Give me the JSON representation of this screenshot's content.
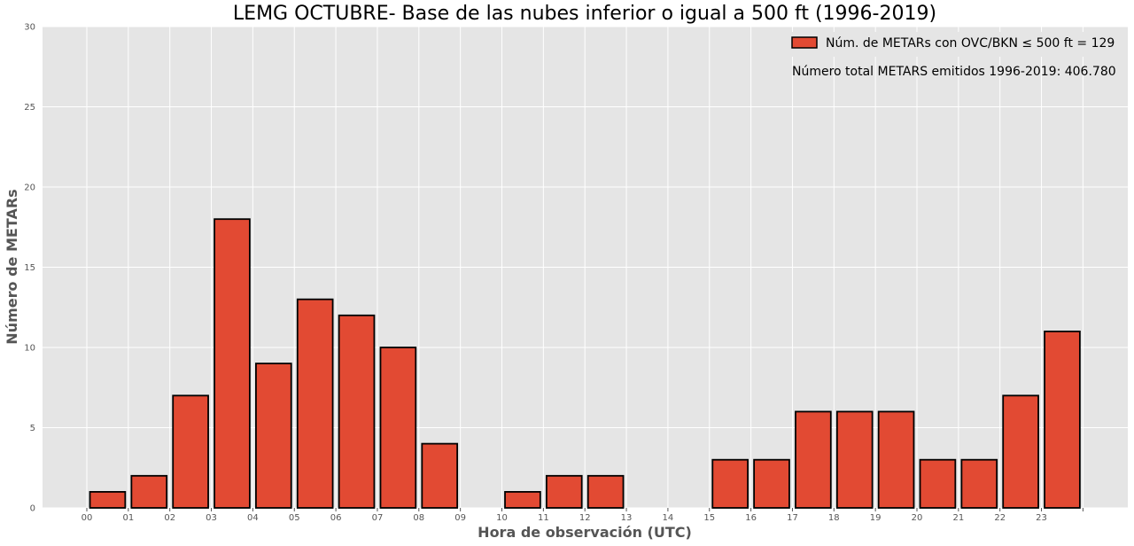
{
  "chart_data": {
    "type": "bar",
    "title": "LEMG OCTUBRE- Base de las nubes inferior o igual a 500 ft (1996-2019)",
    "xlabel": "Hora de observación (UTC)",
    "ylabel": "Número de METARs",
    "categories": [
      "00",
      "01",
      "02",
      "03",
      "04",
      "05",
      "06",
      "07",
      "08",
      "09",
      "10",
      "11",
      "12",
      "13",
      "14",
      "15",
      "16",
      "17",
      "18",
      "19",
      "20",
      "21",
      "22",
      "23"
    ],
    "values": [
      1,
      2,
      7,
      18,
      9,
      13,
      12,
      10,
      4,
      0,
      1,
      2,
      2,
      0,
      0,
      3,
      3,
      6,
      6,
      6,
      3,
      3,
      7,
      11
    ],
    "xticks": [
      "00",
      "01",
      "02",
      "03",
      "04",
      "05",
      "06",
      "07",
      "08",
      "09",
      "10",
      "11",
      "12",
      "13",
      "14",
      "15",
      "16",
      "17",
      "18",
      "19",
      "20",
      "21",
      "22",
      "23"
    ],
    "yticks": [
      0,
      5,
      10,
      15,
      20,
      25,
      30
    ],
    "ylim": [
      0,
      30
    ],
    "grid": true,
    "legend": {
      "label": "Núm. de METARs con OVC/BKN ≤ 500 ft = 129",
      "location": "top-right"
    },
    "annotation": "Número total METARS emitidos 1996-2019:  406.780",
    "colors": {
      "bar_fill": "#E24A33",
      "bar_edge": "#000000",
      "plot_background": "#E5E5E5",
      "grid": "#FFFFFF"
    }
  }
}
